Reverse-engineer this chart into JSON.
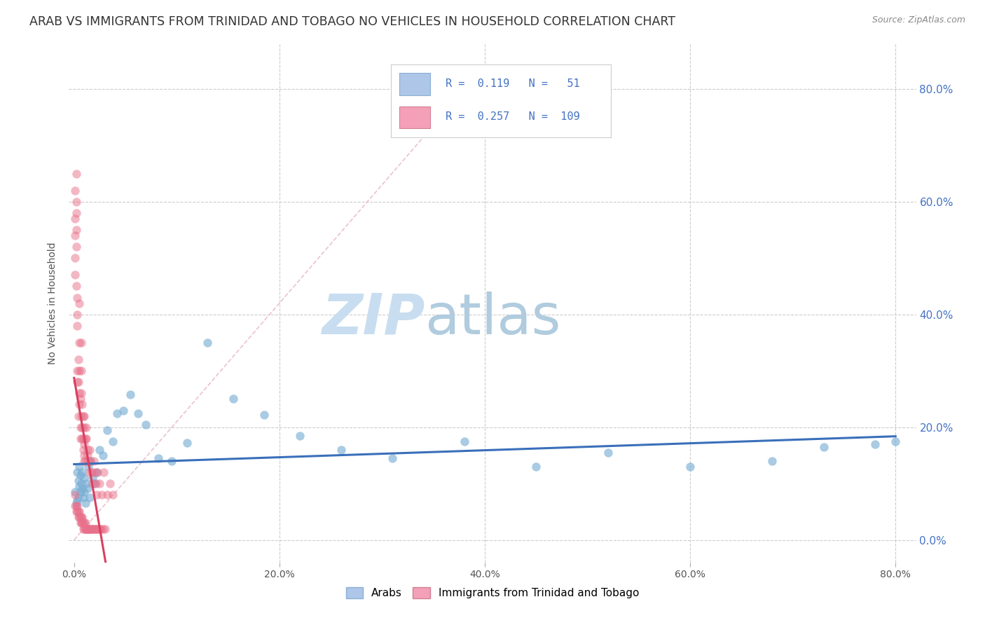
{
  "title": "ARAB VS IMMIGRANTS FROM TRINIDAD AND TOBAGO NO VEHICLES IN HOUSEHOLD CORRELATION CHART",
  "source": "Source: ZipAtlas.com",
  "ylabel": "No Vehicles in Household",
  "ytick_values": [
    0.0,
    0.2,
    0.4,
    0.6,
    0.8
  ],
  "ytick_labels": [
    "0.0%",
    "20.0%",
    "40.0%",
    "60.0%",
    "80.0%"
  ],
  "xtick_values": [
    0.0,
    0.2,
    0.4,
    0.6,
    0.8
  ],
  "xtick_labels": [
    "0.0%",
    "20.0%",
    "40.0%",
    "60.0%",
    "80.0%"
  ],
  "xlim": [
    -0.005,
    0.82
  ],
  "ylim": [
    -0.04,
    0.88
  ],
  "title_fontsize": 12.5,
  "axis_label_fontsize": 10,
  "tick_fontsize": 10,
  "source_fontsize": 9,
  "background_color": "#ffffff",
  "grid_color": "#cccccc",
  "watermark_zip_color": "#c8ddf0",
  "watermark_atlas_color": "#b0ccde",
  "arab_color": "#7bafd4",
  "arab_alpha": 0.65,
  "tt_color": "#e8708a",
  "tt_alpha": 0.5,
  "arab_trendline_color": "#3a6fba",
  "tt_trendline_color": "#d94060",
  "diagonal_color": "#e8b8c4",
  "right_ytick_color": "#4472c4",
  "right_ytick_fontsize": 11,
  "legend_R1": "0.119",
  "legend_N1": "51",
  "legend_R2": "0.257",
  "legend_N2": "109",
  "legend_color1": "#aec6e8",
  "legend_color2": "#f4a0b8",
  "legend_text_color": "#4472c4",
  "arab_x": [
    0.001,
    0.002,
    0.003,
    0.003,
    0.004,
    0.004,
    0.005,
    0.005,
    0.006,
    0.006,
    0.007,
    0.008,
    0.008,
    0.009,
    0.01,
    0.01,
    0.011,
    0.012,
    0.013,
    0.014,
    0.015,
    0.016,
    0.018,
    0.02,
    0.022,
    0.025,
    0.028,
    0.032,
    0.038,
    0.042,
    0.048,
    0.055,
    0.062,
    0.07,
    0.082,
    0.095,
    0.11,
    0.13,
    0.155,
    0.185,
    0.22,
    0.26,
    0.31,
    0.38,
    0.45,
    0.52,
    0.6,
    0.68,
    0.73,
    0.78,
    0.8
  ],
  "arab_y": [
    0.085,
    0.065,
    0.12,
    0.07,
    0.105,
    0.075,
    0.095,
    0.13,
    0.115,
    0.085,
    0.1,
    0.09,
    0.12,
    0.075,
    0.085,
    0.11,
    0.065,
    0.1,
    0.092,
    0.13,
    0.075,
    0.14,
    0.11,
    0.1,
    0.12,
    0.16,
    0.15,
    0.195,
    0.175,
    0.225,
    0.23,
    0.258,
    0.225,
    0.205,
    0.145,
    0.14,
    0.172,
    0.35,
    0.25,
    0.222,
    0.185,
    0.16,
    0.145,
    0.175,
    0.13,
    0.155,
    0.13,
    0.14,
    0.165,
    0.17,
    0.175
  ],
  "tt_x": [
    0.001,
    0.001,
    0.001,
    0.002,
    0.002,
    0.002,
    0.002,
    0.003,
    0.003,
    0.003,
    0.003,
    0.004,
    0.004,
    0.004,
    0.005,
    0.005,
    0.005,
    0.005,
    0.005,
    0.006,
    0.006,
    0.006,
    0.007,
    0.007,
    0.007,
    0.007,
    0.008,
    0.008,
    0.008,
    0.009,
    0.009,
    0.009,
    0.01,
    0.01,
    0.01,
    0.01,
    0.01,
    0.011,
    0.011,
    0.012,
    0.012,
    0.013,
    0.013,
    0.014,
    0.015,
    0.015,
    0.016,
    0.017,
    0.018,
    0.019,
    0.02,
    0.021,
    0.022,
    0.023,
    0.025,
    0.027,
    0.029,
    0.032,
    0.035,
    0.038,
    0.001,
    0.001,
    0.002,
    0.002,
    0.003,
    0.003,
    0.004,
    0.004,
    0.005,
    0.005,
    0.006,
    0.006,
    0.007,
    0.007,
    0.008,
    0.008,
    0.009,
    0.009,
    0.01,
    0.01,
    0.011,
    0.011,
    0.012,
    0.012,
    0.013,
    0.013,
    0.014,
    0.014,
    0.015,
    0.015,
    0.016,
    0.017,
    0.018,
    0.018,
    0.019,
    0.02,
    0.021,
    0.022,
    0.023,
    0.024,
    0.025,
    0.026,
    0.028,
    0.03,
    0.001,
    0.001,
    0.002,
    0.002,
    0.003
  ],
  "tt_y": [
    0.5,
    0.47,
    0.54,
    0.65,
    0.6,
    0.45,
    0.52,
    0.3,
    0.28,
    0.4,
    0.38,
    0.22,
    0.32,
    0.28,
    0.26,
    0.24,
    0.3,
    0.42,
    0.35,
    0.2,
    0.18,
    0.25,
    0.22,
    0.26,
    0.3,
    0.35,
    0.18,
    0.24,
    0.2,
    0.16,
    0.22,
    0.18,
    0.15,
    0.2,
    0.14,
    0.17,
    0.22,
    0.18,
    0.14,
    0.2,
    0.18,
    0.16,
    0.15,
    0.14,
    0.12,
    0.16,
    0.14,
    0.12,
    0.1,
    0.14,
    0.12,
    0.1,
    0.08,
    0.12,
    0.1,
    0.08,
    0.12,
    0.08,
    0.1,
    0.08,
    0.08,
    0.06,
    0.06,
    0.05,
    0.06,
    0.05,
    0.05,
    0.04,
    0.05,
    0.04,
    0.04,
    0.03,
    0.04,
    0.03,
    0.04,
    0.03,
    0.03,
    0.02,
    0.03,
    0.02,
    0.03,
    0.02,
    0.02,
    0.02,
    0.02,
    0.02,
    0.02,
    0.02,
    0.02,
    0.02,
    0.02,
    0.02,
    0.02,
    0.02,
    0.02,
    0.02,
    0.02,
    0.02,
    0.02,
    0.02,
    0.02,
    0.02,
    0.02,
    0.02,
    0.57,
    0.62,
    0.55,
    0.58,
    0.43
  ]
}
